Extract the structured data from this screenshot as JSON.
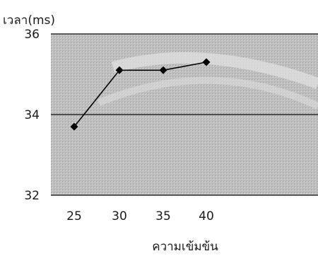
{
  "chart_data": {
    "type": "line",
    "ylabel": "เวลา(ms)",
    "xlabel": "ความเข้มข้น",
    "x": [
      25,
      30,
      35,
      40
    ],
    "y": [
      33.7,
      35.1,
      35.1,
      35.3
    ],
    "x_ticks": [
      "25",
      "30",
      "35",
      "40"
    ],
    "y_ticks": [
      "32",
      "34",
      "36"
    ],
    "ylim": [
      32,
      36
    ],
    "grid": "horizontal",
    "marker": "diamond",
    "line_color": "#000000",
    "plot_background": "#bdbdbd"
  }
}
